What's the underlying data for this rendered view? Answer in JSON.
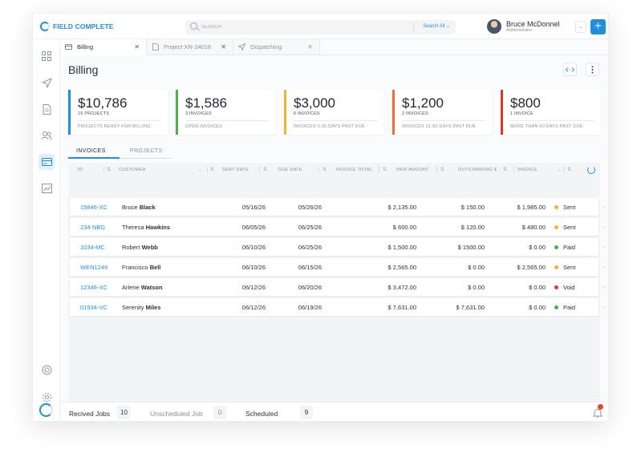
{
  "app": {
    "logo_text": "FIELD COMPLETE",
    "brand_color": "#1f8fe0"
  },
  "search": {
    "placeholder": "SEARCH",
    "scope": "Search All ⌄"
  },
  "user": {
    "name": "Bruce McDonnel",
    "role": "Administrator"
  },
  "tabs": [
    {
      "label": "Billing",
      "icon": "credit-card-icon"
    },
    {
      "label": "Project XN-24016",
      "icon": "document-icon"
    },
    {
      "label": "Dispatching",
      "icon": "send-icon"
    }
  ],
  "page": {
    "title": "Billing"
  },
  "cards": [
    {
      "amount": "$10,786",
      "sub": "15 PROJECTS",
      "desc": "PROJECTS READY FOR BILLING",
      "color": "#1f8fe0"
    },
    {
      "amount": "$1,586",
      "sub": "3 INVOICES",
      "desc": "OPEN INVOICES",
      "color": "#4caf50"
    },
    {
      "amount": "$3,000",
      "sub": "6 INVOICES",
      "desc": "INVOICES 0-30 DAYS PAST DUE",
      "color": "#f0b43a"
    },
    {
      "amount": "$1,200",
      "sub": "2 INVOICES",
      "desc": "INVOICES 31-60 DAYS PAST DUE",
      "color": "#ee6a3a"
    },
    {
      "amount": "$800",
      "sub": "1 INVOICE",
      "desc": "MORE THAN 60 DAYS PAST DUE",
      "color": "#d93b2b"
    }
  ],
  "section_tabs": {
    "invoices": "INVOICES",
    "projects": "PROJECTS"
  },
  "columns": {
    "id": "ID",
    "customer": "CUSTOMER",
    "sent_date": "SENT DATE",
    "due_date": "DUE DATE",
    "invoice_total": "INVOICE TOTAL",
    "paid_amount": "PAID AMOUNT",
    "outstanding": "OUTSTANDING $",
    "invoice": "INVOICE"
  },
  "status_colors": {
    "Sent": "#f0b43a",
    "Paid": "#4caf50",
    "Void": "#d93b2b"
  },
  "rows": [
    {
      "id": "15846-XC",
      "first": "Bruce",
      "last": "Black",
      "sent": "05/16/26",
      "due": "05/26/26",
      "total": "$ 2,135.00",
      "paid": "$ 150.00",
      "outstanding": "$ 1,985.00",
      "status": "Sent"
    },
    {
      "id": "234-NBG",
      "first": "Theresa",
      "last": "Hawkins",
      "sent": "06/05/26",
      "due": "06/25/26",
      "total": "$ 600.00",
      "paid": "$ 120.00",
      "outstanding": "$ 480.00",
      "status": "Sent"
    },
    {
      "id": "1034-MC",
      "first": "Robert",
      "last": "Webb",
      "sent": "06/10/26",
      "due": "06/25/26",
      "total": "$ 1,500.00",
      "paid": "$ 1500.00",
      "outstanding": "$ 0.00",
      "status": "Paid"
    },
    {
      "id": "WEN1249",
      "first": "Francisco",
      "last": "Bell",
      "sent": "06/10/26",
      "due": "06/15/26",
      "total": "$ 2,565.00",
      "paid": "$ 0.00",
      "outstanding": "$ 2,565.00",
      "status": "Sent"
    },
    {
      "id": "12346-XC",
      "first": "Arlene",
      "last": "Watson",
      "sent": "06/12/26",
      "due": "06/20/26",
      "total": "$ 3,472.00",
      "paid": "$ 0.00",
      "outstanding": "$ 0.00",
      "status": "Void"
    },
    {
      "id": "01934-VC",
      "first": "Serenity",
      "last": "Miles",
      "sent": "06/12/26",
      "due": "06/19/26",
      "total": "$ 7,631.00",
      "paid": "$ 7,631.00",
      "outstanding": "$ 0.00",
      "status": "Paid"
    }
  ],
  "footer": {
    "received_label": "Recived Jobs",
    "received_count": "10",
    "unscheduled_label": "Unscheduled Job",
    "unscheduled_count": "0",
    "scheduled_label": "Scheduled",
    "scheduled_count": "9"
  }
}
